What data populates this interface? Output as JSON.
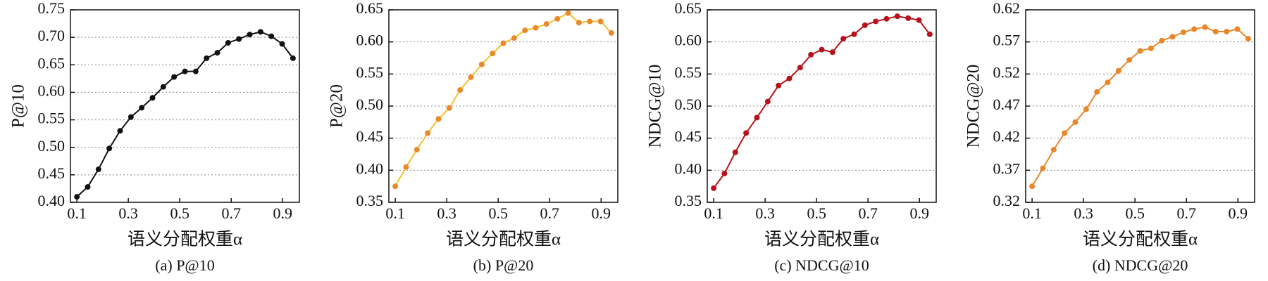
{
  "chart_data": [
    {
      "type": "line",
      "ylabel": "P@10",
      "xlabel": "语义分配权重α",
      "caption": "(a) P@10",
      "color": "#111111",
      "marker_color": "#111111",
      "x": [
        0.1,
        0.142,
        0.184,
        0.226,
        0.268,
        0.31,
        0.352,
        0.394,
        0.436,
        0.478,
        0.52,
        0.562,
        0.604,
        0.646,
        0.688,
        0.73,
        0.772,
        0.814,
        0.856,
        0.898,
        0.94
      ],
      "values": [
        0.41,
        0.428,
        0.46,
        0.498,
        0.53,
        0.555,
        0.572,
        0.59,
        0.61,
        0.628,
        0.638,
        0.638,
        0.662,
        0.672,
        0.69,
        0.697,
        0.705,
        0.71,
        0.702,
        0.688,
        0.662
      ],
      "xlim": [
        0.075,
        0.965
      ],
      "xticks": [
        0.1,
        0.3,
        0.5,
        0.7,
        0.9
      ],
      "ylim": [
        0.4,
        0.75
      ],
      "yticks": [
        {
          "value": 0.4,
          "label": "0.40"
        },
        0.45,
        {
          "value": 0.5,
          "label": "0.50"
        },
        0.55,
        {
          "value": 0.6,
          "label": "0.60"
        },
        0.65,
        {
          "value": 0.7,
          "label": "0.70"
        },
        0.75
      ],
      "grid": true
    },
    {
      "type": "line",
      "ylabel": "P@20",
      "xlabel": "语义分配权重α",
      "caption": "(b) P@20",
      "color": "#f2c12e",
      "marker_color": "#e8892c",
      "x": [
        0.1,
        0.142,
        0.184,
        0.226,
        0.268,
        0.31,
        0.352,
        0.394,
        0.436,
        0.478,
        0.52,
        0.562,
        0.604,
        0.646,
        0.688,
        0.73,
        0.772,
        0.814,
        0.856,
        0.898,
        0.94
      ],
      "values": [
        0.375,
        0.405,
        0.432,
        0.458,
        0.48,
        0.497,
        0.525,
        0.545,
        0.565,
        0.582,
        0.598,
        0.606,
        0.618,
        0.622,
        0.628,
        0.636,
        0.645,
        0.63,
        0.632,
        0.632,
        0.614
      ],
      "xlim": [
        0.075,
        0.965
      ],
      "xticks": [
        0.1,
        0.3,
        0.5,
        0.7,
        0.9
      ],
      "ylim": [
        0.35,
        0.65
      ],
      "yticks": [
        0.35,
        {
          "value": 0.4,
          "label": "0.40"
        },
        0.45,
        {
          "value": 0.5,
          "label": "0.50"
        },
        0.55,
        {
          "value": 0.6,
          "label": "0.60"
        },
        0.65
      ],
      "grid": true
    },
    {
      "type": "line",
      "ylabel": "NDCG@10",
      "xlabel": "语义分配权重α",
      "caption": "(c) NDCG@10",
      "color": "#b5121b",
      "marker_color": "#b5121b",
      "x": [
        0.1,
        0.142,
        0.184,
        0.226,
        0.268,
        0.31,
        0.352,
        0.394,
        0.436,
        0.478,
        0.52,
        0.562,
        0.604,
        0.646,
        0.688,
        0.73,
        0.772,
        0.814,
        0.856,
        0.898,
        0.94
      ],
      "values": [
        0.372,
        0.395,
        0.428,
        0.458,
        0.482,
        0.507,
        0.532,
        0.543,
        0.56,
        0.58,
        0.588,
        0.584,
        0.605,
        0.612,
        0.626,
        0.632,
        0.636,
        0.64,
        0.637,
        0.634,
        0.612
      ],
      "xlim": [
        0.075,
        0.965
      ],
      "xticks": [
        0.1,
        0.3,
        0.5,
        0.7,
        0.9
      ],
      "ylim": [
        0.35,
        0.65
      ],
      "yticks": [
        0.35,
        {
          "value": 0.4,
          "label": "0.40"
        },
        0.45,
        {
          "value": 0.5,
          "label": "0.50"
        },
        0.55,
        {
          "value": 0.6,
          "label": "0.60"
        },
        0.65
      ],
      "grid": true
    },
    {
      "type": "line",
      "ylabel": "NDCG@20",
      "xlabel": "语义分配权重α",
      "caption": "(d) NDCG@20",
      "color": "#e8862a",
      "marker_color": "#e8862a",
      "x": [
        0.1,
        0.142,
        0.184,
        0.226,
        0.268,
        0.31,
        0.352,
        0.394,
        0.436,
        0.478,
        0.52,
        0.562,
        0.604,
        0.646,
        0.688,
        0.73,
        0.772,
        0.814,
        0.856,
        0.898,
        0.94
      ],
      "values": [
        0.345,
        0.373,
        0.402,
        0.428,
        0.445,
        0.465,
        0.492,
        0.507,
        0.525,
        0.542,
        0.556,
        0.56,
        0.572,
        0.578,
        0.585,
        0.59,
        0.593,
        0.586,
        0.586,
        0.59,
        0.575
      ],
      "xlim": [
        0.075,
        0.965
      ],
      "xticks": [
        0.1,
        0.3,
        0.5,
        0.7,
        0.9
      ],
      "ylim": [
        0.32,
        0.62
      ],
      "yticks": [
        0.32,
        0.37,
        0.42,
        0.47,
        0.52,
        0.57,
        0.62
      ],
      "grid": true
    }
  ]
}
